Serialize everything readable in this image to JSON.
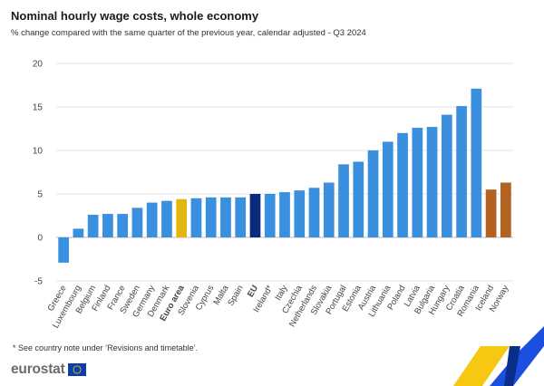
{
  "title": "Nominal hourly wage costs, whole economy",
  "subtitle": "% change compared with the same quarter of the previous year, calendar adjusted - Q3 2024",
  "footnote": "* See country note under ‘Revisions and timetable’.",
  "logo": {
    "text": "eurostat",
    "flag_icon": "eu-flag-icon",
    "colors": {
      "text": "#6b6b6b",
      "flag": "#0e3fa8",
      "stars": "#ffd617"
    }
  },
  "corner_decoration": {
    "icon": "eurostat-chevron-stripes-icon",
    "colors": [
      "#f7c811",
      "#1a4fe0",
      "#0a2f8a"
    ]
  },
  "colors": {
    "country": "#3a8fde",
    "euro_area": "#e3b512",
    "eu": "#0a2a7a",
    "efta": "#b3621f",
    "grid": "#e3e3e3",
    "axis_text": "#444444"
  },
  "chart_data": {
    "type": "bar",
    "ylim": [
      -5,
      20
    ],
    "yticks": [
      -5,
      0,
      5,
      10,
      15,
      20
    ],
    "grid": true,
    "legend": "none",
    "xlabel": "",
    "ylabel": "",
    "categories": [
      {
        "name": "Greece",
        "value": -2.9,
        "group": "country",
        "bold": false
      },
      {
        "name": "Luxembourg",
        "value": 1.0,
        "group": "country",
        "bold": false
      },
      {
        "name": "Belgium",
        "value": 2.6,
        "group": "country",
        "bold": false
      },
      {
        "name": "Finland",
        "value": 2.7,
        "group": "country",
        "bold": false
      },
      {
        "name": "France",
        "value": 2.7,
        "group": "country",
        "bold": false
      },
      {
        "name": "Sweden",
        "value": 3.4,
        "group": "country",
        "bold": false
      },
      {
        "name": "Germany",
        "value": 4.0,
        "group": "country",
        "bold": false
      },
      {
        "name": "Denmark",
        "value": 4.2,
        "group": "country",
        "bold": false
      },
      {
        "name": "Euro area",
        "value": 4.4,
        "group": "euro_area",
        "bold": true
      },
      {
        "name": "Slovenia",
        "value": 4.5,
        "group": "country",
        "bold": false
      },
      {
        "name": "Cyprus",
        "value": 4.6,
        "group": "country",
        "bold": false
      },
      {
        "name": "Malta",
        "value": 4.6,
        "group": "country",
        "bold": false
      },
      {
        "name": "Spain",
        "value": 4.6,
        "group": "country",
        "bold": false
      },
      {
        "name": "EU",
        "value": 5.0,
        "group": "eu",
        "bold": true
      },
      {
        "name": "Ireland*",
        "value": 5.0,
        "group": "country",
        "bold": false
      },
      {
        "name": "Italy",
        "value": 5.2,
        "group": "country",
        "bold": false
      },
      {
        "name": "Czechia",
        "value": 5.4,
        "group": "country",
        "bold": false
      },
      {
        "name": "Netherlands",
        "value": 5.7,
        "group": "country",
        "bold": false
      },
      {
        "name": "Slovakia",
        "value": 6.3,
        "group": "country",
        "bold": false
      },
      {
        "name": "Portugal",
        "value": 8.4,
        "group": "country",
        "bold": false
      },
      {
        "name": "Estonia",
        "value": 8.7,
        "group": "country",
        "bold": false
      },
      {
        "name": "Austria",
        "value": 10.0,
        "group": "country",
        "bold": false
      },
      {
        "name": "Lithuania",
        "value": 11.0,
        "group": "country",
        "bold": false
      },
      {
        "name": "Poland",
        "value": 12.0,
        "group": "country",
        "bold": false
      },
      {
        "name": "Latvia",
        "value": 12.6,
        "group": "country",
        "bold": false
      },
      {
        "name": "Bulgaria",
        "value": 12.7,
        "group": "country",
        "bold": false
      },
      {
        "name": "Hungary",
        "value": 14.1,
        "group": "country",
        "bold": false
      },
      {
        "name": "Croatia",
        "value": 15.1,
        "group": "country",
        "bold": false
      },
      {
        "name": "Romania",
        "value": 17.1,
        "group": "country",
        "bold": false
      },
      {
        "name": "Iceland",
        "value": 5.5,
        "group": "efta",
        "bold": false
      },
      {
        "name": "Norway",
        "value": 6.3,
        "group": "efta",
        "bold": false
      }
    ]
  }
}
